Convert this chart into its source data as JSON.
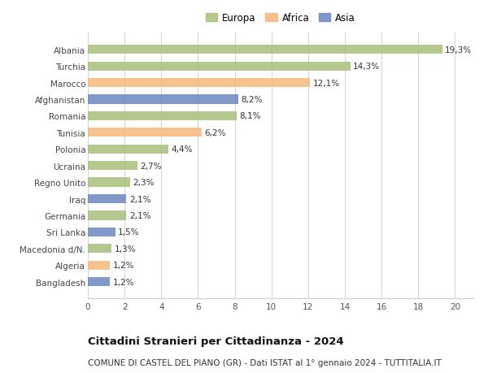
{
  "countries": [
    "Albania",
    "Turchia",
    "Marocco",
    "Afghanistan",
    "Romania",
    "Tunisia",
    "Polonia",
    "Ucraina",
    "Regno Unito",
    "Iraq",
    "Germania",
    "Sri Lanka",
    "Macedonia d/N.",
    "Algeria",
    "Bangladesh"
  ],
  "values": [
    19.3,
    14.3,
    12.1,
    8.2,
    8.1,
    6.2,
    4.4,
    2.7,
    2.3,
    2.1,
    2.1,
    1.5,
    1.3,
    1.2,
    1.2
  ],
  "labels": [
    "19,3%",
    "14,3%",
    "12,1%",
    "8,2%",
    "8,1%",
    "6,2%",
    "4,4%",
    "2,7%",
    "2,3%",
    "2,1%",
    "2,1%",
    "1,5%",
    "1,3%",
    "1,2%",
    "1,2%"
  ],
  "continents": [
    "Europa",
    "Europa",
    "Africa",
    "Asia",
    "Europa",
    "Africa",
    "Europa",
    "Europa",
    "Europa",
    "Asia",
    "Europa",
    "Asia",
    "Europa",
    "Africa",
    "Asia"
  ],
  "colors": {
    "Europa": "#a8c07a",
    "Africa": "#f5b97a",
    "Asia": "#6b87c0"
  },
  "xlim": [
    0,
    21
  ],
  "xticks": [
    0,
    2,
    4,
    6,
    8,
    10,
    12,
    14,
    16,
    18,
    20
  ],
  "title1": "Cittadini Stranieri per Cittadinanza - 2024",
  "title2": "COMUNE DI CASTEL DEL PIANO (GR) - Dati ISTAT al 1° gennaio 2024 - TUTTITALIA.IT",
  "background_color": "#ffffff",
  "grid_color": "#cccccc",
  "bar_height": 0.55,
  "label_fontsize": 7.5,
  "tick_fontsize": 7.5,
  "title1_fontsize": 9.5,
  "title2_fontsize": 7.5,
  "legend_fontsize": 8.5
}
